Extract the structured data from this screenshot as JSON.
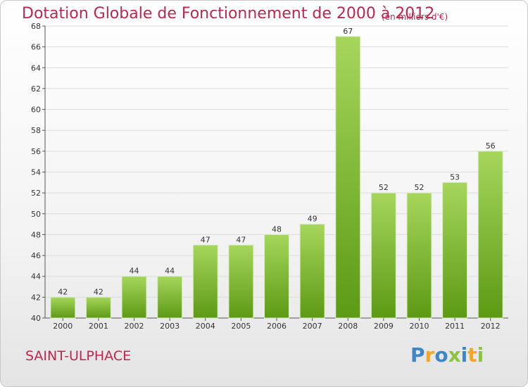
{
  "title": "Dotation Globale de Fonctionnement de 2000 à 2012",
  "subtitle": "(en milliers d'€)",
  "place": "SAINT-ULPHACE",
  "logo": {
    "text": "Proxiti",
    "colors": [
      "#3f86c9",
      "#f5a623",
      "#3f86c9",
      "#8bc53f",
      "#3f86c9",
      "#f5a623",
      "#8bc53f"
    ]
  },
  "colors": {
    "title": "#c0254d",
    "bar_top": "#a6d65c",
    "bar_bottom": "#5c9a14",
    "grid": "#dcdcdc",
    "axis": "#555555"
  },
  "chart_data": {
    "type": "bar",
    "title": "Dotation Globale de Fonctionnement de 2000 à 2012",
    "subtitle": "(en milliers d'€)",
    "categories": [
      "2000",
      "2001",
      "2002",
      "2003",
      "2004",
      "2005",
      "2006",
      "2007",
      "2008",
      "2009",
      "2010",
      "2011",
      "2012"
    ],
    "values": [
      42,
      42,
      44,
      44,
      47,
      47,
      48,
      49,
      67,
      52,
      52,
      53,
      56
    ],
    "ylim": [
      40,
      68
    ],
    "yticks": [
      40,
      42,
      44,
      46,
      48,
      50,
      52,
      54,
      56,
      58,
      60,
      62,
      64,
      66,
      68
    ],
    "grid": true,
    "data_labels": true
  }
}
